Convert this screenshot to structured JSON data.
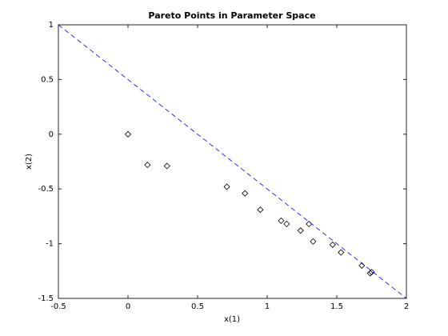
{
  "chart_data": {
    "type": "scatter",
    "title": "Pareto Points in Parameter Space",
    "x_label": "x(1)",
    "y_label": "x(2)",
    "xlim": [
      -0.5,
      2
    ],
    "ylim": [
      -1.5,
      1
    ],
    "xticks": [
      -0.5,
      0,
      0.5,
      1,
      1.5,
      2
    ],
    "yticks": [
      -1.5,
      -1,
      -0.5,
      0,
      0.5,
      1
    ],
    "grid": false,
    "box": true,
    "series": [
      {
        "type": "scatter",
        "marker": "diamond",
        "color": "#000000",
        "x": [
          0,
          0.14,
          0.28,
          0.71,
          0.84,
          0.95,
          1.1,
          1.14,
          1.24,
          1.3,
          1.33,
          1.47,
          1.53,
          1.68,
          1.74,
          1.75
        ],
        "values": [
          0,
          -0.28,
          -0.29,
          -0.48,
          -0.54,
          -0.69,
          -0.79,
          -0.82,
          -0.88,
          -0.82,
          -0.98,
          -1.01,
          -1.08,
          -1.2,
          -1.27,
          -1.26
        ]
      },
      {
        "type": "line",
        "line_style": "dashed",
        "color": "#0000ff",
        "x": [
          -0.5,
          2
        ],
        "values": [
          1,
          -1.5
        ]
      }
    ]
  }
}
